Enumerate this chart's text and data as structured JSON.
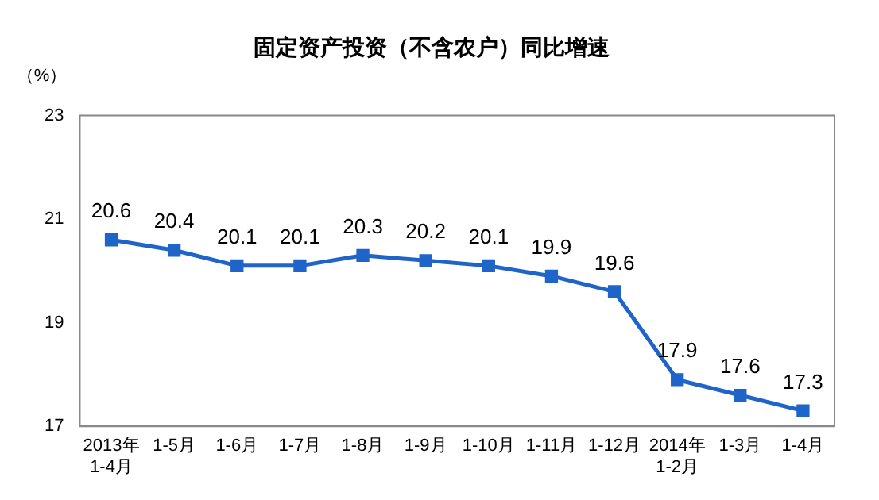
{
  "chart_data": {
    "type": "line",
    "title": "固定资产投资（不含农户）同比增速",
    "ylabel": "（%）",
    "categories": [
      "2013年\n1-4月",
      "1-5月",
      "1-6月",
      "1-7月",
      "1-8月",
      "1-9月",
      "1-10月",
      "1-11月",
      "1-12月",
      "2014年\n1-2月",
      "1-3月",
      "1-4月"
    ],
    "series": [
      {
        "color": "#1f64c8",
        "values": [
          20.6,
          20.4,
          20.1,
          20.1,
          20.3,
          20.2,
          20.1,
          19.9,
          19.6,
          17.9,
          17.6,
          17.3
        ]
      }
    ],
    "ylim": [
      17,
      23
    ],
    "yticks": [
      17,
      19,
      21,
      23
    ],
    "grid": false,
    "legend": false,
    "marker": "square",
    "line_style": "solid",
    "data_labels": true
  }
}
